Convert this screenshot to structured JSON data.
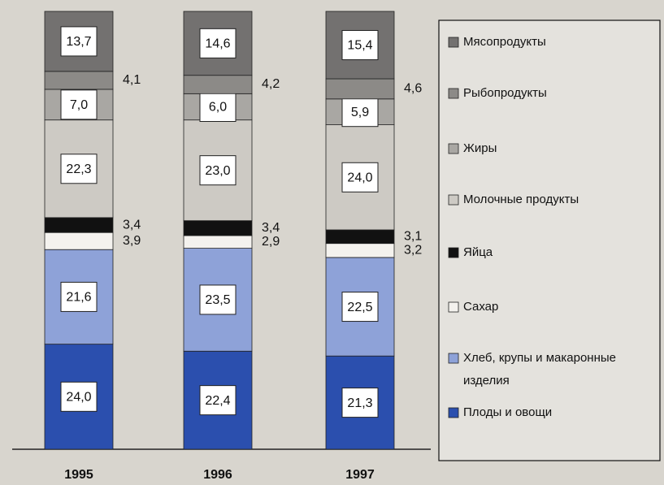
{
  "chart_data": {
    "type": "stacked_bar",
    "categories": [
      "1995",
      "1996",
      "1997"
    ],
    "series": [
      {
        "name": "Плоды и овощи",
        "color": "#2b4fae",
        "values": [
          24.0,
          22.4,
          21.3
        ],
        "value_labels": [
          "24,0",
          "22,4",
          "21,3"
        ]
      },
      {
        "name": "Хлеб, крупы и макаронные изделия",
        "color": "#8ea2d8",
        "values": [
          21.6,
          23.5,
          22.5
        ],
        "value_labels": [
          "21,6",
          "23,5",
          "22,5"
        ]
      },
      {
        "name": "Сахар",
        "color": "#f4f2ee",
        "values": [
          3.9,
          2.9,
          3.2
        ],
        "value_labels": [
          "3,9",
          "2,9",
          "3,2"
        ]
      },
      {
        "name": "Яйца",
        "color": "#111111",
        "values": [
          3.4,
          3.4,
          3.1
        ],
        "value_labels": [
          "3,4",
          "3,4",
          "3,1"
        ]
      },
      {
        "name": "Молочные продукты",
        "color": "#cdcac4",
        "values": [
          22.3,
          23.0,
          24.0
        ],
        "value_labels": [
          "22,3",
          "23,0",
          "24,0"
        ]
      },
      {
        "name": "Жиры",
        "color": "#a9a7a3",
        "values": [
          7.0,
          6.0,
          5.9
        ],
        "value_labels": [
          "7,0",
          "6,0",
          "5,9"
        ]
      },
      {
        "name": "Рыбопродукты",
        "color": "#8c8a87",
        "values": [
          4.1,
          4.2,
          4.6
        ],
        "value_labels": [
          "4,1",
          "4,2",
          "4,6"
        ]
      },
      {
        "name": "Мясопродукты",
        "color": "#737170",
        "values": [
          13.7,
          14.6,
          15.4
        ],
        "value_labels": [
          "13,7",
          "14,6",
          "15,4"
        ]
      }
    ]
  }
}
